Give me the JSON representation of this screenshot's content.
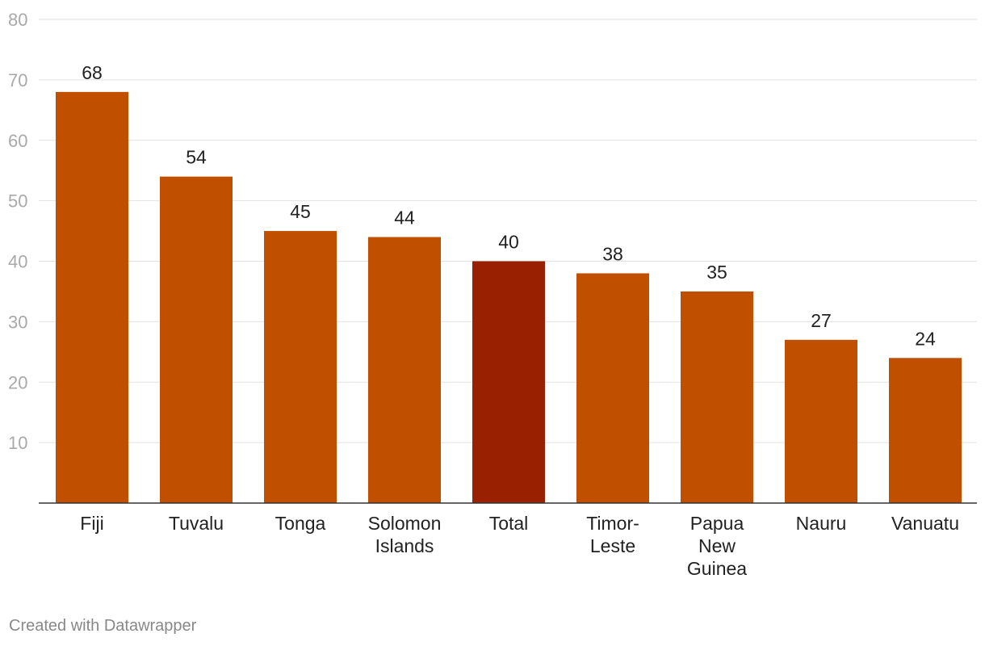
{
  "chart_data": {
    "type": "bar",
    "categories": [
      "Fiji",
      "Tuvalu",
      "Tonga",
      "Solomon Islands",
      "Total",
      "Timor-Leste",
      "Papua New Guinea",
      "Nauru",
      "Vanuatu"
    ],
    "category_lines": [
      [
        "Fiji"
      ],
      [
        "Tuvalu"
      ],
      [
        "Tonga"
      ],
      [
        "Solomon",
        "Islands"
      ],
      [
        "Total"
      ],
      [
        "Timor-",
        "Leste"
      ],
      [
        "Papua",
        "New",
        "Guinea"
      ],
      [
        "Nauru"
      ],
      [
        "Vanuatu"
      ]
    ],
    "values": [
      68,
      54,
      45,
      44,
      40,
      38,
      35,
      27,
      24
    ],
    "value_labels": [
      "68",
      "54",
      "45",
      "44",
      "40",
      "38",
      "35",
      "27",
      "24"
    ],
    "highlight": "Total",
    "ylim": [
      0,
      80
    ],
    "yticks": [
      10,
      20,
      30,
      40,
      50,
      60,
      70,
      80
    ],
    "ytick_labels": [
      "10",
      "20",
      "30",
      "40",
      "50",
      "60",
      "70",
      "80"
    ],
    "title": "",
    "xlabel": "",
    "ylabel": "",
    "grid": true,
    "colors": {
      "bar": "#c05000",
      "highlight": "#992000",
      "grid": "#e2e2e2",
      "axis": "#333333"
    }
  },
  "footer": {
    "credit": "Created with Datawrapper"
  }
}
